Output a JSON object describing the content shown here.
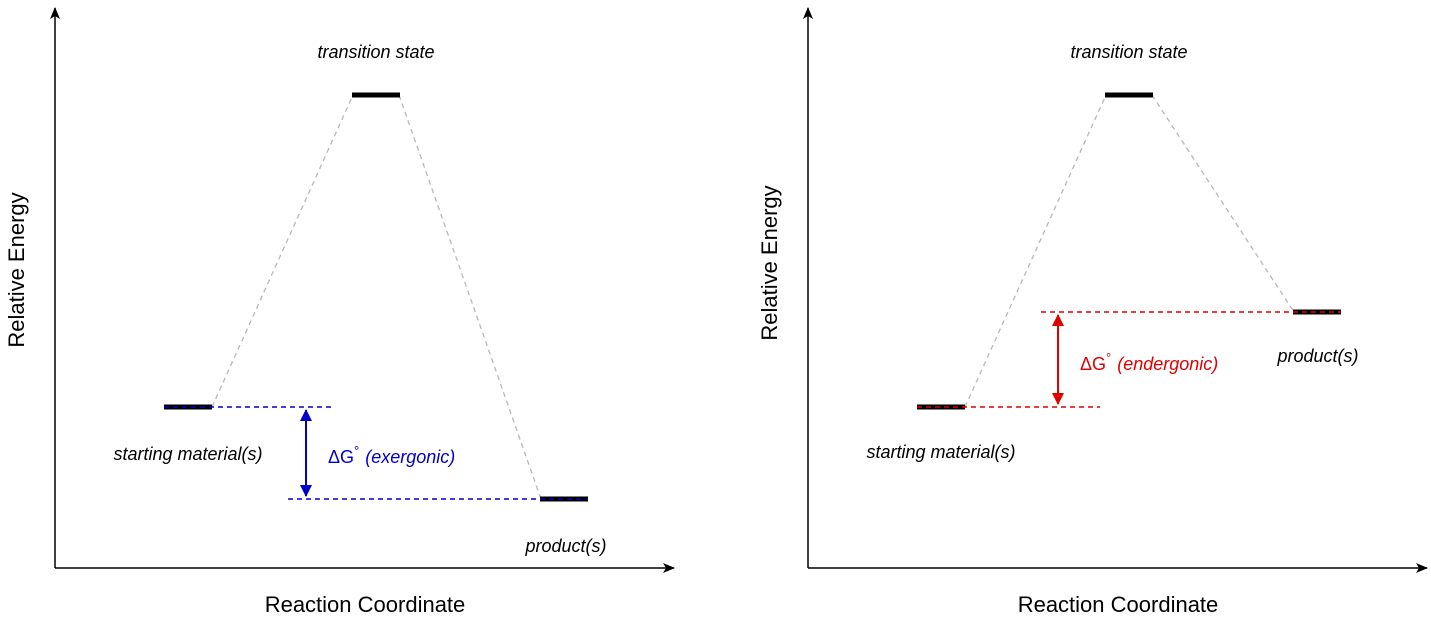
{
  "diagrams": [
    {
      "id": "exergonic",
      "y_axis_label": "Relative Energy",
      "x_axis_label": "Reaction Coordinate",
      "states": {
        "transition_state": "transition state",
        "starting_material": "starting material(s)",
        "product": "product(s)"
      },
      "delta_g": {
        "symbol": "ΔG",
        "degree": "°",
        "note": "(exergonic)",
        "color": "#0000cc"
      }
    },
    {
      "id": "endergonic",
      "y_axis_label": "Relative Energy",
      "x_axis_label": "Reaction Coordinate",
      "states": {
        "transition_state": "transition state",
        "starting_material": "starting material(s)",
        "product": "product(s)"
      },
      "delta_g": {
        "symbol": "ΔG",
        "degree": "°",
        "note": "(endergonic)",
        "color": "#e00000"
      }
    }
  ]
}
